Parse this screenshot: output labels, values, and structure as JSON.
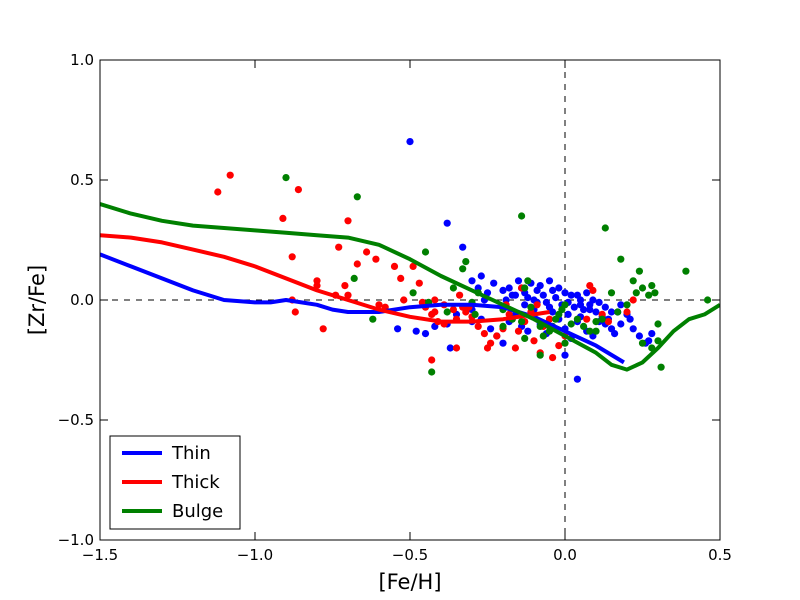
{
  "chart_data": {
    "type": "scatter",
    "title": "",
    "xlabel": "[Fe/H]",
    "ylabel": "[Zr/Fe]",
    "xlim": [
      -1.5,
      0.5
    ],
    "ylim": [
      -1.0,
      1.0
    ],
    "x_ticks": [
      -1.5,
      -1.0,
      -0.5,
      0.0,
      0.5
    ],
    "x_tick_labels": [
      "−1.5",
      "−1.0",
      "−0.5",
      "0.0",
      "0.5"
    ],
    "y_ticks": [
      -1.0,
      -0.5,
      0.0,
      0.5,
      1.0
    ],
    "y_tick_labels": [
      "−1.0",
      "−0.5",
      "0.0",
      "0.5",
      "1.0"
    ],
    "reference_lines": {
      "x": 0.0,
      "y": 0.0,
      "style": "dashed"
    },
    "legend_position": "lower-left",
    "series": [
      {
        "name": "Thin",
        "color": "#0000ff",
        "curve": [
          [
            -1.5,
            0.19
          ],
          [
            -1.4,
            0.14
          ],
          [
            -1.3,
            0.09
          ],
          [
            -1.2,
            0.04
          ],
          [
            -1.1,
            0.0
          ],
          [
            -1.0,
            -0.01
          ],
          [
            -0.95,
            -0.01
          ],
          [
            -0.9,
            0.0
          ],
          [
            -0.85,
            -0.01
          ],
          [
            -0.8,
            -0.02
          ],
          [
            -0.75,
            -0.04
          ],
          [
            -0.7,
            -0.05
          ],
          [
            -0.6,
            -0.05
          ],
          [
            -0.5,
            -0.03
          ],
          [
            -0.4,
            -0.02
          ],
          [
            -0.3,
            -0.02
          ],
          [
            -0.2,
            -0.03
          ],
          [
            -0.1,
            -0.07
          ],
          [
            0.0,
            -0.13
          ],
          [
            0.1,
            -0.19
          ],
          [
            0.19,
            -0.26
          ]
        ],
        "points": [
          [
            -0.5,
            0.66
          ],
          [
            -0.38,
            0.32
          ],
          [
            -0.33,
            0.22
          ],
          [
            -0.3,
            0.08
          ],
          [
            -0.27,
            0.1
          ],
          [
            -0.28,
            0.05
          ],
          [
            -0.25,
            0.03
          ],
          [
            -0.23,
            0.07
          ],
          [
            -0.2,
            0.04
          ],
          [
            -0.19,
            0.0
          ],
          [
            -0.18,
            0.05
          ],
          [
            -0.16,
            0.02
          ],
          [
            -0.15,
            0.08
          ],
          [
            -0.14,
            0.05
          ],
          [
            -0.13,
            0.03
          ],
          [
            -0.12,
            0.01
          ],
          [
            -0.11,
            0.07
          ],
          [
            -0.1,
            0.0
          ],
          [
            -0.09,
            0.04
          ],
          [
            -0.08,
            0.06
          ],
          [
            -0.07,
            0.02
          ],
          [
            -0.06,
            -0.01
          ],
          [
            -0.05,
            0.08
          ],
          [
            -0.04,
            0.04
          ],
          [
            -0.03,
            0.01
          ],
          [
            -0.02,
            0.05
          ],
          [
            -0.01,
            -0.02
          ],
          [
            0.0,
            0.03
          ],
          [
            0.01,
            -0.01
          ],
          [
            0.02,
            0.02
          ],
          [
            0.03,
            -0.03
          ],
          [
            0.04,
            0.02
          ],
          [
            0.05,
            0.0
          ],
          [
            0.06,
            -0.04
          ],
          [
            0.07,
            0.03
          ],
          [
            0.08,
            -0.02
          ],
          [
            0.09,
            0.0
          ],
          [
            0.1,
            -0.05
          ],
          [
            0.11,
            -0.01
          ],
          [
            0.12,
            -0.07
          ],
          [
            0.13,
            -0.03
          ],
          [
            0.14,
            -0.08
          ],
          [
            0.15,
            -0.12
          ],
          [
            0.16,
            -0.14
          ],
          [
            0.17,
            -0.05
          ],
          [
            0.18,
            -0.1
          ],
          [
            0.2,
            -0.06
          ],
          [
            0.22,
            -0.12
          ],
          [
            0.24,
            -0.15
          ],
          [
            0.26,
            -0.18
          ],
          [
            0.27,
            -0.17
          ],
          [
            0.28,
            -0.14
          ],
          [
            -0.45,
            -0.14
          ],
          [
            -0.42,
            -0.11
          ],
          [
            -0.38,
            -0.1
          ],
          [
            -0.35,
            -0.06
          ],
          [
            -0.3,
            -0.09
          ],
          [
            -0.27,
            -0.08
          ],
          [
            -0.24,
            -0.12
          ],
          [
            -0.22,
            -0.15
          ],
          [
            -0.2,
            -0.18
          ],
          [
            -0.18,
            -0.09
          ],
          [
            -0.16,
            -0.06
          ],
          [
            -0.14,
            -0.11
          ],
          [
            -0.12,
            -0.13
          ],
          [
            -0.1,
            -0.04
          ],
          [
            -0.08,
            -0.1
          ],
          [
            -0.06,
            -0.14
          ],
          [
            -0.04,
            -0.05
          ],
          [
            -0.02,
            -0.08
          ],
          [
            0.0,
            -0.12
          ],
          [
            0.02,
            -0.16
          ],
          [
            0.04,
            -0.09
          ],
          [
            0.05,
            -0.07
          ],
          [
            0.07,
            -0.13
          ],
          [
            0.09,
            -0.15
          ],
          [
            0.0,
            -0.23
          ],
          [
            0.04,
            -0.33
          ],
          [
            -0.54,
            -0.12
          ],
          [
            -0.48,
            -0.13
          ],
          [
            -0.37,
            -0.2
          ],
          [
            -0.3,
            -0.04
          ],
          [
            -0.26,
            0.0
          ],
          [
            -0.17,
            0.02
          ],
          [
            -0.13,
            -0.02
          ],
          [
            -0.09,
            -0.01
          ],
          [
            -0.05,
            -0.03
          ],
          [
            0.01,
            -0.06
          ],
          [
            0.05,
            -0.02
          ],
          [
            0.08,
            -0.04
          ],
          [
            0.11,
            -0.09
          ],
          [
            0.13,
            -0.1
          ],
          [
            0.15,
            -0.05
          ],
          [
            0.18,
            -0.02
          ],
          [
            0.21,
            -0.08
          ]
        ]
      },
      {
        "name": "Thick",
        "color": "#ff0000",
        "curve": [
          [
            -1.5,
            0.27
          ],
          [
            -1.4,
            0.26
          ],
          [
            -1.3,
            0.24
          ],
          [
            -1.2,
            0.21
          ],
          [
            -1.1,
            0.18
          ],
          [
            -1.0,
            0.14
          ],
          [
            -0.9,
            0.09
          ],
          [
            -0.8,
            0.04
          ],
          [
            -0.7,
            0.0
          ],
          [
            -0.6,
            -0.04
          ],
          [
            -0.5,
            -0.07
          ],
          [
            -0.4,
            -0.09
          ],
          [
            -0.3,
            -0.09
          ],
          [
            -0.2,
            -0.08
          ],
          [
            -0.1,
            -0.06
          ],
          [
            -0.05,
            -0.05
          ]
        ],
        "points": [
          [
            -1.08,
            0.52
          ],
          [
            -1.12,
            0.45
          ],
          [
            -0.86,
            0.46
          ],
          [
            -0.91,
            0.34
          ],
          [
            -0.7,
            0.33
          ],
          [
            -0.88,
            0.18
          ],
          [
            -0.73,
            0.22
          ],
          [
            -0.64,
            0.2
          ],
          [
            -0.67,
            0.15
          ],
          [
            -0.61,
            0.17
          ],
          [
            -0.55,
            0.14
          ],
          [
            -0.53,
            0.09
          ],
          [
            -0.49,
            0.14
          ],
          [
            -0.47,
            0.07
          ],
          [
            -0.8,
            0.08
          ],
          [
            -0.8,
            0.06
          ],
          [
            -0.71,
            0.06
          ],
          [
            -0.7,
            0.02
          ],
          [
            -0.74,
            0.02
          ],
          [
            -0.88,
            0.0
          ],
          [
            -0.87,
            -0.05
          ],
          [
            -0.78,
            -0.12
          ],
          [
            -0.6,
            -0.02
          ],
          [
            -0.58,
            -0.03
          ],
          [
            -0.52,
            0.0
          ],
          [
            -0.46,
            -0.01
          ],
          [
            -0.45,
            -0.03
          ],
          [
            -0.43,
            -0.06
          ],
          [
            -0.42,
            -0.05
          ],
          [
            -0.41,
            -0.09
          ],
          [
            -0.39,
            -0.1
          ],
          [
            -0.36,
            -0.04
          ],
          [
            -0.35,
            -0.08
          ],
          [
            -0.33,
            -0.03
          ],
          [
            -0.32,
            -0.05
          ],
          [
            -0.3,
            -0.07
          ],
          [
            -0.28,
            -0.11
          ],
          [
            -0.26,
            -0.14
          ],
          [
            -0.24,
            -0.18
          ],
          [
            -0.22,
            -0.15
          ],
          [
            -0.2,
            -0.12
          ],
          [
            -0.18,
            -0.06
          ],
          [
            -0.16,
            -0.2
          ],
          [
            -0.15,
            -0.13
          ],
          [
            -0.13,
            -0.09
          ],
          [
            -0.11,
            -0.05
          ],
          [
            -0.1,
            -0.17
          ],
          [
            -0.08,
            -0.22
          ],
          [
            -0.07,
            -0.11
          ],
          [
            -0.05,
            -0.08
          ],
          [
            -0.04,
            -0.24
          ],
          [
            -0.02,
            -0.19
          ],
          [
            0.0,
            -0.15
          ],
          [
            0.08,
            0.06
          ],
          [
            0.09,
            0.04
          ],
          [
            0.12,
            -0.06
          ],
          [
            0.14,
            -0.09
          ],
          [
            -0.43,
            -0.25
          ],
          [
            -0.35,
            -0.2
          ],
          [
            -0.25,
            -0.2
          ],
          [
            -0.42,
            0.0
          ],
          [
            -0.39,
            -0.02
          ],
          [
            -0.34,
            0.02
          ],
          [
            -0.31,
            -0.03
          ],
          [
            -0.19,
            -0.02
          ],
          [
            -0.14,
            0.05
          ],
          [
            -0.09,
            -0.02
          ],
          [
            0.2,
            -0.05
          ],
          [
            0.22,
            0.0
          ],
          [
            0.07,
            -0.08
          ]
        ]
      },
      {
        "name": "Bulge",
        "color": "#008000",
        "curve": [
          [
            -1.5,
            0.4
          ],
          [
            -1.4,
            0.36
          ],
          [
            -1.3,
            0.33
          ],
          [
            -1.2,
            0.31
          ],
          [
            -1.1,
            0.3
          ],
          [
            -1.0,
            0.29
          ],
          [
            -0.9,
            0.28
          ],
          [
            -0.8,
            0.27
          ],
          [
            -0.7,
            0.26
          ],
          [
            -0.6,
            0.23
          ],
          [
            -0.5,
            0.17
          ],
          [
            -0.4,
            0.1
          ],
          [
            -0.3,
            0.04
          ],
          [
            -0.2,
            -0.02
          ],
          [
            -0.1,
            -0.08
          ],
          [
            0.0,
            -0.15
          ],
          [
            0.1,
            -0.22
          ],
          [
            0.15,
            -0.27
          ],
          [
            0.2,
            -0.29
          ],
          [
            0.25,
            -0.26
          ],
          [
            0.3,
            -0.2
          ],
          [
            0.35,
            -0.13
          ],
          [
            0.4,
            -0.08
          ],
          [
            0.45,
            -0.06
          ],
          [
            0.5,
            -0.02
          ]
        ],
        "points": [
          [
            -0.9,
            0.51
          ],
          [
            -0.67,
            0.43
          ],
          [
            -0.14,
            0.35
          ],
          [
            0.13,
            0.3
          ],
          [
            -0.45,
            0.2
          ],
          [
            -0.32,
            0.16
          ],
          [
            -0.68,
            0.09
          ],
          [
            -0.33,
            0.13
          ],
          [
            -0.36,
            0.05
          ],
          [
            -0.28,
            0.03
          ],
          [
            -0.3,
            -0.01
          ],
          [
            -0.49,
            0.03
          ],
          [
            -0.44,
            -0.01
          ],
          [
            -0.38,
            -0.05
          ],
          [
            -0.29,
            -0.06
          ],
          [
            -0.2,
            -0.04
          ],
          [
            -0.17,
            -0.08
          ],
          [
            -0.14,
            -0.09
          ],
          [
            -0.12,
            0.08
          ],
          [
            -0.13,
            0.05
          ],
          [
            -0.11,
            -0.03
          ],
          [
            -0.1,
            -0.07
          ],
          [
            -0.08,
            -0.11
          ],
          [
            -0.07,
            -0.15
          ],
          [
            -0.05,
            -0.13
          ],
          [
            -0.04,
            -0.11
          ],
          [
            -0.03,
            -0.08
          ],
          [
            -0.02,
            -0.06
          ],
          [
            -0.01,
            -0.04
          ],
          [
            0.0,
            -0.02
          ],
          [
            0.02,
            -0.1
          ],
          [
            0.04,
            -0.08
          ],
          [
            0.06,
            -0.11
          ],
          [
            0.08,
            -0.13
          ],
          [
            0.1,
            -0.09
          ],
          [
            0.12,
            -0.08
          ],
          [
            0.15,
            0.03
          ],
          [
            0.17,
            -0.05
          ],
          [
            0.18,
            0.17
          ],
          [
            0.2,
            -0.02
          ],
          [
            0.22,
            0.08
          ],
          [
            0.23,
            0.03
          ],
          [
            0.24,
            0.12
          ],
          [
            0.25,
            0.05
          ],
          [
            0.27,
            0.02
          ],
          [
            0.28,
            0.06
          ],
          [
            0.29,
            0.03
          ],
          [
            0.3,
            -0.1
          ],
          [
            0.31,
            -0.28
          ],
          [
            0.39,
            0.12
          ],
          [
            0.46,
            0.0
          ],
          [
            -0.62,
            -0.08
          ],
          [
            -0.43,
            -0.3
          ],
          [
            -0.2,
            -0.11
          ],
          [
            -0.13,
            -0.16
          ],
          [
            -0.08,
            -0.23
          ],
          [
            0.0,
            -0.18
          ],
          [
            0.1,
            -0.13
          ],
          [
            0.25,
            -0.18
          ],
          [
            0.28,
            -0.2
          ],
          [
            0.3,
            -0.17
          ]
        ]
      }
    ]
  }
}
